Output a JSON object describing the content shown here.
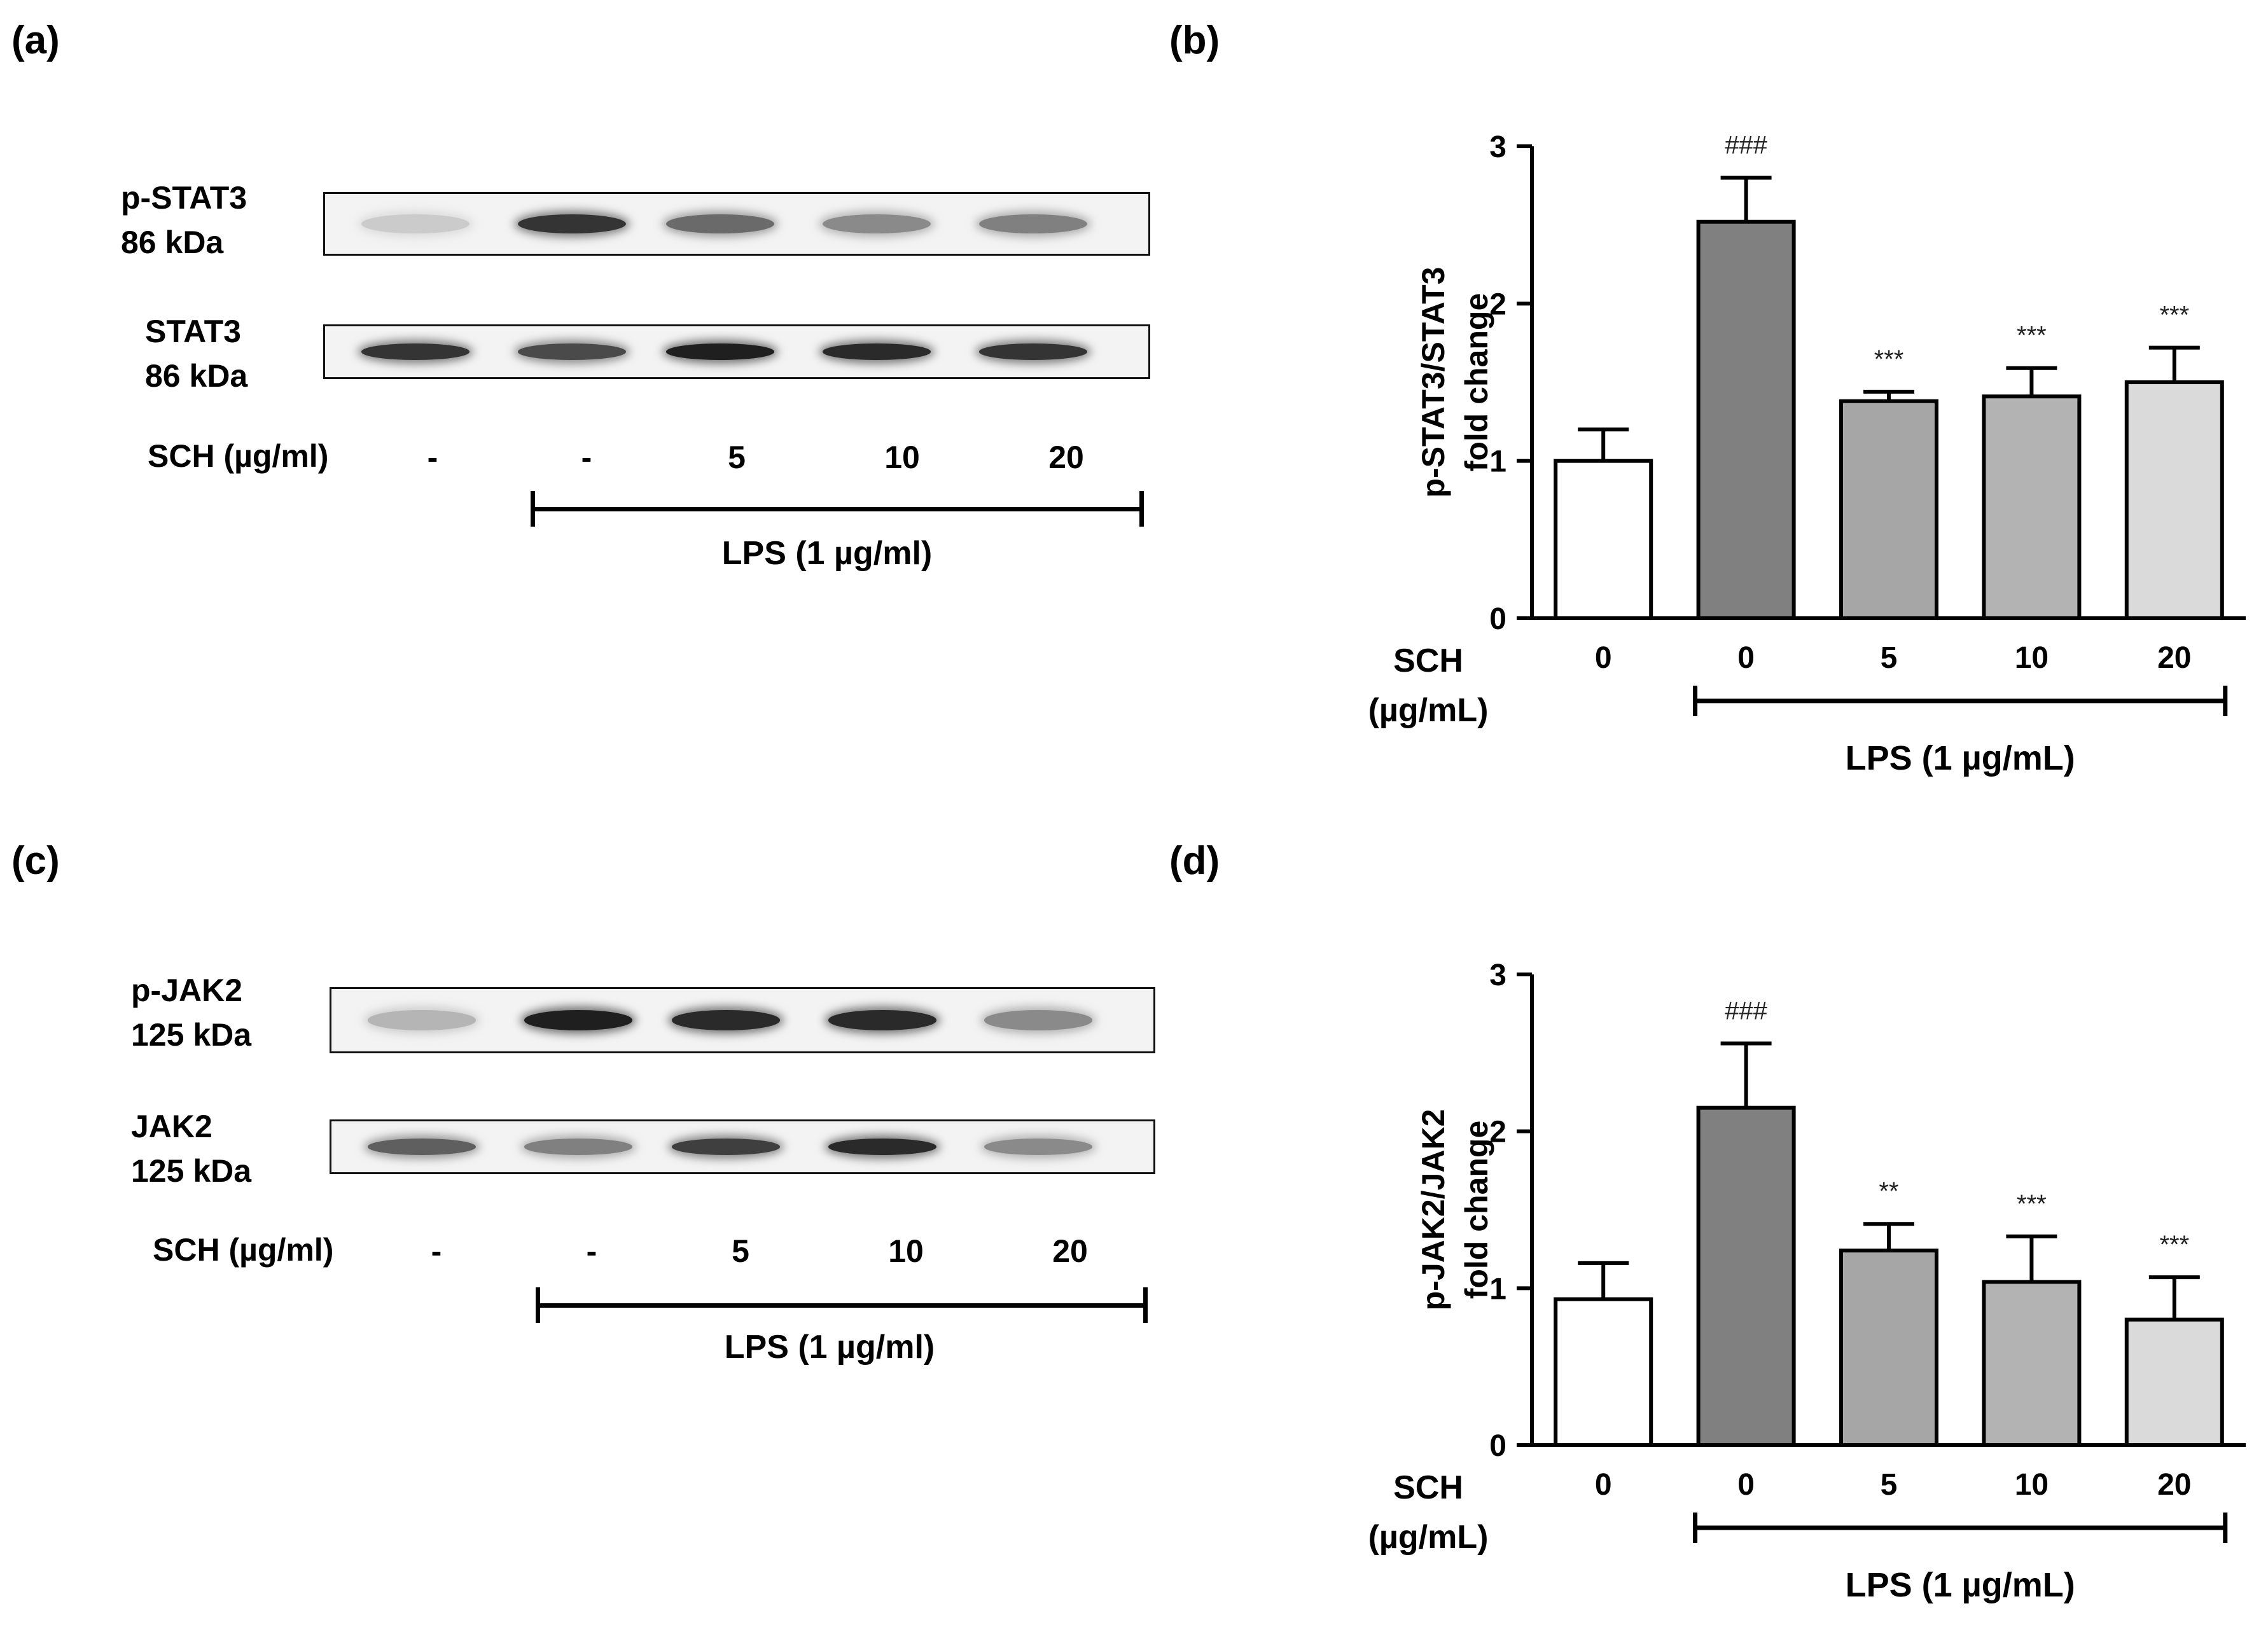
{
  "panels": {
    "a": {
      "letter": "(a)"
    },
    "b": {
      "letter": "(b)"
    },
    "c": {
      "letter": "(c)"
    },
    "d": {
      "letter": "(d)"
    }
  },
  "blot_a": {
    "rows": [
      {
        "label_line1": "p-STAT3",
        "label_line2": "86 kDa",
        "band_intensity": [
          0.15,
          0.85,
          0.6,
          0.45,
          0.5
        ]
      },
      {
        "label_line1": "STAT3",
        "label_line2": "86 kDa",
        "band_intensity": [
          0.85,
          0.75,
          0.95,
          0.9,
          0.85
        ]
      }
    ],
    "sch_label": "SCH  (µg/ml)",
    "lanes": [
      "-",
      "-",
      "5",
      "10",
      "20"
    ],
    "lps_label": "LPS (1 µg/ml)"
  },
  "blot_c": {
    "rows": [
      {
        "label_line1": "p-JAK2",
        "label_line2": "125 kDa",
        "band_intensity": [
          0.25,
          0.95,
          0.9,
          0.9,
          0.45
        ]
      },
      {
        "label_line1": "JAK2",
        "label_line2": "125 kDa",
        "band_intensity": [
          0.65,
          0.5,
          0.8,
          0.9,
          0.45
        ]
      }
    ],
    "sch_label": "SCH  (µg/ml)",
    "lanes": [
      "-",
      "-",
      "5",
      "10",
      "20"
    ],
    "lps_label": "LPS (1 µg/ml)"
  },
  "chart_data": [
    {
      "panel": "b",
      "type": "bar",
      "ylabel_line1": "p-STAT3/STAT3",
      "ylabel_line2": "fold change",
      "ylim": [
        0,
        3
      ],
      "yticks": [
        "0",
        "1",
        "2",
        "3"
      ],
      "categories": [
        "0",
        "0",
        "5",
        "10",
        "20"
      ],
      "values": [
        1.0,
        2.52,
        1.38,
        1.41,
        1.5
      ],
      "errors": [
        0.2,
        0.28,
        0.06,
        0.18,
        0.22
      ],
      "annotations": [
        "",
        "###",
        "***",
        "***",
        "***"
      ],
      "bar_colors": [
        "#ffffff",
        "#808080",
        "#a6a6a6",
        "#b3b3b3",
        "#dadada"
      ],
      "x_row_label_line1": "SCH",
      "x_row_label_line2": "(µg/mL)",
      "lps_label": "LPS (1 µg/mL)"
    },
    {
      "panel": "d",
      "type": "bar",
      "ylabel_line1": "p-JAK2/JAK2",
      "ylabel_line2": "fold change",
      "ylim": [
        0,
        3
      ],
      "yticks": [
        "0",
        "1",
        "2",
        "3"
      ],
      "categories": [
        "0",
        "0",
        "5",
        "10",
        "20"
      ],
      "values": [
        0.93,
        2.15,
        1.24,
        1.04,
        0.8
      ],
      "errors": [
        0.23,
        0.41,
        0.17,
        0.29,
        0.27
      ],
      "annotations": [
        "",
        "###",
        "**",
        "***",
        "***"
      ],
      "bar_colors": [
        "#ffffff",
        "#808080",
        "#a6a6a6",
        "#b3b3b3",
        "#dadada"
      ],
      "x_row_label_line1": "SCH",
      "x_row_label_line2": "(µg/mL)",
      "lps_label": "LPS (1 µg/mL)"
    }
  ]
}
